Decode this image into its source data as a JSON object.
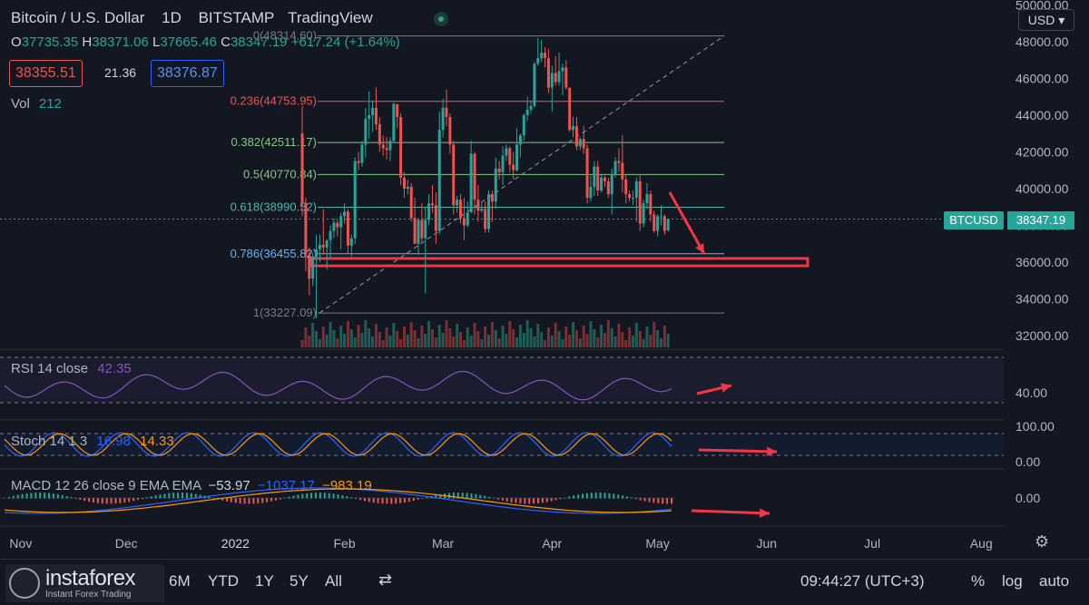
{
  "header": {
    "symbol": "Bitcoin / U.S. Dollar",
    "interval": "1D",
    "exchange": "BITSTAMP",
    "source": "TradingView",
    "ohlc": {
      "o_label": "O",
      "o": "37735.35",
      "h_label": "H",
      "h": "38371.06",
      "l_label": "L",
      "l": "37665.46",
      "c_label": "C",
      "c": "38347.19",
      "change": "+617.24 (+1.64%)"
    },
    "bid": "38355.51",
    "spread": "21.36",
    "ask": "38376.87",
    "vol_label": "Vol",
    "vol_value": "212",
    "currency": "USD ▾"
  },
  "indicators": {
    "rsi": {
      "label": "RSI 14 close",
      "value": "42.35"
    },
    "stoch": {
      "label": "Stoch 14 1 3",
      "k": "16.98",
      "d": "14.33"
    },
    "macd": {
      "label": "MACD 12 26 close 9 EMA EMA",
      "hist": "−53.97",
      "macd": "−1037.17",
      "signal": "−983.19"
    }
  },
  "price_tag": {
    "symbol": "BTCUSD",
    "price": "38347.19"
  },
  "bottom_bar": {
    "logo_name": "instaforex",
    "logo_sub": "Instant Forex Trading",
    "ranges": [
      "6M",
      "YTD",
      "1Y",
      "5Y",
      "All"
    ],
    "time": "09:44:27 (UTC+3)",
    "opts": [
      "%",
      "log",
      "auto"
    ]
  },
  "colors": {
    "bg": "#131722",
    "up": "#26a69a",
    "down": "#ef5350",
    "fib_red": "#ef5350",
    "fib_green": "#81c784",
    "fib_teal": "#4db6ac",
    "fib_blue": "#64b5f6",
    "fib_gray": "#787b86",
    "rsi": "#7e57c2",
    "stoch_k": "#2962ff",
    "stoch_d": "#ff9800",
    "arrow": "#f23645",
    "zone": "#f23645"
  },
  "chart_data": {
    "type": "candlestick",
    "symbol": "BTCUSD",
    "price_axis": {
      "ticks": [
        32000,
        34000,
        36000,
        38000,
        40000,
        42000,
        44000,
        46000,
        48000,
        50000
      ],
      "labels": [
        "32000.00",
        "34000.00",
        "36000.00",
        "38000.00",
        "40000.00",
        "42000.00",
        "44000.00",
        "46000.00",
        "48000.00",
        "50000.00"
      ]
    },
    "time_axis": {
      "labels": [
        "Nov",
        "Dec",
        "2022",
        "Feb",
        "Mar",
        "Apr",
        "May",
        "Jun",
        "Jul",
        "Aug"
      ]
    },
    "fibonacci": [
      {
        "level": "0",
        "price": "48314.60",
        "label": "0(48314.60)"
      },
      {
        "level": "0.236",
        "price": "44753.95",
        "label": "0.236(44753.95)"
      },
      {
        "level": "0.382",
        "price": "42511.17",
        "label": "0.382(42511.17)"
      },
      {
        "level": "0.5",
        "price": "40770.84",
        "label": "0.5(40770.84)"
      },
      {
        "level": "0.618",
        "price": "38990.52",
        "label": "0.618(38990.52)"
      },
      {
        "level": "0.786",
        "price": "36455.82",
        "label": "0.786(36455.82)"
      },
      {
        "level": "1",
        "price": "33227.09",
        "label": "1(33227.09)"
      }
    ],
    "zone": {
      "low": 35800,
      "high": 36200
    },
    "candles": [
      [
        "2022-01-20",
        43000,
        44500,
        38500,
        39200
      ],
      [
        "2022-01-21",
        39200,
        39500,
        35500,
        36400
      ],
      [
        "2022-01-22",
        36400,
        36800,
        34200,
        35100
      ],
      [
        "2022-01-23",
        35100,
        36500,
        34700,
        36300
      ],
      [
        "2022-01-24",
        36300,
        37500,
        32950,
        36700
      ],
      [
        "2022-01-25",
        36700,
        37500,
        36000,
        36950
      ],
      [
        "2022-01-26",
        36950,
        38900,
        36400,
        36800
      ],
      [
        "2022-01-27",
        36800,
        37200,
        35600,
        37200
      ],
      [
        "2022-01-28",
        37200,
        38000,
        36200,
        37700
      ],
      [
        "2022-01-29",
        37700,
        38400,
        37300,
        38150
      ],
      [
        "2022-01-30",
        38150,
        38300,
        37400,
        37900
      ],
      [
        "2022-01-31",
        37900,
        38700,
        36700,
        38500
      ],
      [
        "2022-02-01",
        38500,
        39200,
        38100,
        38750
      ],
      [
        "2022-02-02",
        38750,
        38900,
        36500,
        36900
      ],
      [
        "2022-02-03",
        36900,
        37500,
        36300,
        37300
      ],
      [
        "2022-02-04",
        37300,
        41700,
        37000,
        41500
      ],
      [
        "2022-02-05",
        41500,
        42000,
        41000,
        41400
      ],
      [
        "2022-02-06",
        41400,
        42600,
        41200,
        42400
      ],
      [
        "2022-02-07",
        42400,
        44400,
        41700,
        43800
      ],
      [
        "2022-02-08",
        43800,
        45300,
        42700,
        44000
      ],
      [
        "2022-02-09",
        44000,
        44800,
        43100,
        44400
      ],
      [
        "2022-02-10",
        44400,
        45500,
        43200,
        43500
      ],
      [
        "2022-02-11",
        43500,
        43900,
        42000,
        42400
      ],
      [
        "2022-02-12",
        42400,
        42900,
        41800,
        42200
      ],
      [
        "2022-02-13",
        42200,
        42800,
        41600,
        42100
      ],
      [
        "2022-02-14",
        42100,
        42800,
        41500,
        42600
      ],
      [
        "2022-02-15",
        42600,
        44700,
        42500,
        44600
      ],
      [
        "2022-02-16",
        44600,
        44600,
        43300,
        43900
      ],
      [
        "2022-02-17",
        43900,
        44100,
        40200,
        40600
      ],
      [
        "2022-02-18",
        40600,
        40900,
        39500,
        40000
      ],
      [
        "2022-02-19",
        40000,
        40500,
        39700,
        40100
      ],
      [
        "2022-02-20",
        40100,
        40300,
        38200,
        38400
      ],
      [
        "2022-02-21",
        38400,
        39500,
        37000,
        37000
      ],
      [
        "2022-02-22",
        37000,
        38400,
        36400,
        38300
      ],
      [
        "2022-02-23",
        38300,
        39200,
        37100,
        37300
      ],
      [
        "2022-02-24",
        37300,
        39000,
        34300,
        38300
      ],
      [
        "2022-02-25",
        38300,
        39700,
        38000,
        39200
      ],
      [
        "2022-02-26",
        39200,
        40200,
        38700,
        39100
      ],
      [
        "2022-02-27",
        39100,
        39800,
        37000,
        37700
      ],
      [
        "2022-02-28",
        37700,
        44200,
        37500,
        43200
      ],
      [
        "2022-03-01",
        43200,
        44900,
        42800,
        44400
      ],
      [
        "2022-03-02",
        44400,
        45400,
        43400,
        43900
      ],
      [
        "2022-03-03",
        43900,
        44100,
        41900,
        42400
      ],
      [
        "2022-03-04",
        42400,
        42600,
        38600,
        39100
      ],
      [
        "2022-03-05",
        39100,
        39600,
        38700,
        39400
      ],
      [
        "2022-03-06",
        39400,
        39700,
        38100,
        38400
      ],
      [
        "2022-03-07",
        38400,
        39500,
        37200,
        38000
      ],
      [
        "2022-03-08",
        38000,
        39300,
        37900,
        38700
      ],
      [
        "2022-03-09",
        38700,
        42600,
        38700,
        41900
      ],
      [
        "2022-03-10",
        41900,
        42000,
        38600,
        39400
      ],
      [
        "2022-03-11",
        39400,
        40200,
        38200,
        38800
      ],
      [
        "2022-03-12",
        38800,
        39300,
        38700,
        38900
      ],
      [
        "2022-03-13",
        38900,
        39300,
        37600,
        37800
      ],
      [
        "2022-03-14",
        37800,
        39900,
        37600,
        39700
      ],
      [
        "2022-03-15",
        39700,
        39900,
        38200,
        39300
      ],
      [
        "2022-03-16",
        39300,
        41700,
        38900,
        41100
      ],
      [
        "2022-03-17",
        41100,
        41500,
        40500,
        40900
      ],
      [
        "2022-03-18",
        40900,
        42300,
        40200,
        41800
      ],
      [
        "2022-03-19",
        41800,
        42400,
        41500,
        42200
      ],
      [
        "2022-03-20",
        42200,
        42300,
        40900,
        41300
      ],
      [
        "2022-03-21",
        41300,
        42000,
        40500,
        41000
      ],
      [
        "2022-03-22",
        41000,
        43300,
        40900,
        42400
      ],
      [
        "2022-03-23",
        42400,
        43000,
        41700,
        42900
      ],
      [
        "2022-03-24",
        42900,
        44100,
        42600,
        44000
      ],
      [
        "2022-03-25",
        44000,
        45000,
        43700,
        44300
      ],
      [
        "2022-03-26",
        44300,
        44800,
        44100,
        44500
      ],
      [
        "2022-03-27",
        44500,
        46900,
        44400,
        46800
      ],
      [
        "2022-03-28",
        46800,
        48200,
        46700,
        47100
      ],
      [
        "2022-03-29",
        47100,
        48100,
        46900,
        47400
      ],
      [
        "2022-03-30",
        47400,
        47700,
        46600,
        47100
      ],
      [
        "2022-03-31",
        47100,
        47600,
        45200,
        45500
      ],
      [
        "2022-04-01",
        45500,
        46700,
        44200,
        46300
      ],
      [
        "2022-04-02",
        46300,
        47200,
        45600,
        45800
      ],
      [
        "2022-04-03",
        45800,
        47400,
        45600,
        46400
      ],
      [
        "2022-04-04",
        46400,
        46800,
        45100,
        46600
      ],
      [
        "2022-04-05",
        46600,
        47000,
        45400,
        45500
      ],
      [
        "2022-04-06",
        45500,
        45500,
        43100,
        43200
      ],
      [
        "2022-04-07",
        43200,
        43900,
        42800,
        43400
      ],
      [
        "2022-04-08",
        43400,
        43900,
        42100,
        42300
      ],
      [
        "2022-04-09",
        42300,
        42800,
        42100,
        42700
      ],
      [
        "2022-04-10",
        42700,
        43400,
        41900,
        42200
      ],
      [
        "2022-04-11",
        42200,
        42400,
        39200,
        39500
      ],
      [
        "2022-04-12",
        39500,
        40700,
        39300,
        40100
      ],
      [
        "2022-04-13",
        40100,
        41500,
        39600,
        41200
      ],
      [
        "2022-04-14",
        41200,
        41500,
        39600,
        39900
      ],
      [
        "2022-04-15",
        39900,
        40800,
        39800,
        40600
      ],
      [
        "2022-04-16",
        40600,
        40700,
        40100,
        40400
      ],
      [
        "2022-04-17",
        40400,
        40600,
        39500,
        39700
      ],
      [
        "2022-04-18",
        39700,
        41100,
        38600,
        40800
      ],
      [
        "2022-04-19",
        40800,
        41700,
        40600,
        41500
      ],
      [
        "2022-04-20",
        41500,
        42200,
        40900,
        41400
      ],
      [
        "2022-04-21",
        41400,
        42900,
        39800,
        40500
      ],
      [
        "2022-04-22",
        40500,
        40800,
        39200,
        39700
      ],
      [
        "2022-04-23",
        39700,
        39900,
        39300,
        39500
      ],
      [
        "2022-04-24",
        39500,
        39900,
        39100,
        39500
      ],
      [
        "2022-04-25",
        39500,
        40600,
        38200,
        40400
      ],
      [
        "2022-04-26",
        40400,
        40800,
        37700,
        38100
      ],
      [
        "2022-04-27",
        38100,
        39400,
        37900,
        39200
      ],
      [
        "2022-04-28",
        39200,
        40300,
        38900,
        39700
      ],
      [
        "2022-04-29",
        39700,
        39900,
        38200,
        38600
      ],
      [
        "2022-04-30",
        38600,
        38800,
        37600,
        37700
      ],
      [
        "2022-05-01",
        37700,
        38600,
        37400,
        38500
      ],
      [
        "2022-05-02",
        38500,
        39100,
        38000,
        38500
      ],
      [
        "2022-05-03",
        38500,
        38600,
        37500,
        37700
      ],
      [
        "2022-05-04",
        37735.35,
        38371.06,
        37665.46,
        38347.19
      ]
    ]
  }
}
